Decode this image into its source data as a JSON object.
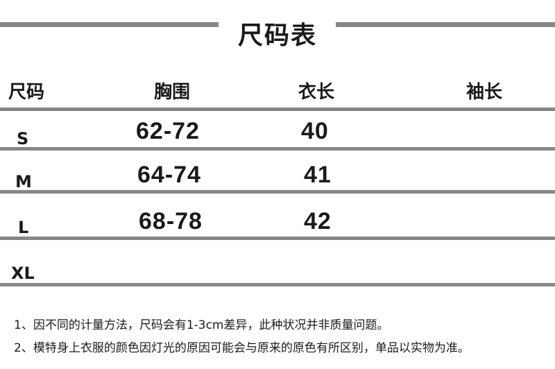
{
  "title": "尺码表",
  "table": {
    "headers": [
      "尺码",
      "胸围",
      "衣长",
      "袖长"
    ],
    "rows": [
      {
        "size": "S",
        "chest": "62-72",
        "length": "40",
        "sleeve": ""
      },
      {
        "size": "M",
        "chest": "64-74",
        "length": "41",
        "sleeve": ""
      },
      {
        "size": "L",
        "chest": "68-78",
        "length": "42",
        "sleeve": ""
      },
      {
        "size": "XL",
        "chest": "",
        "length": "",
        "sleeve": ""
      }
    ]
  },
  "notes": [
    "1、因不同的计量方法，尺码会有1-3cm差异，此种状况并非质量问题。",
    "2、模特身上衣服的颜色因灯光的原因可能会与原来的原色有所区别，单品以实物为准。"
  ],
  "colors": {
    "rule": "#878585",
    "text": "#1a1a1a"
  }
}
